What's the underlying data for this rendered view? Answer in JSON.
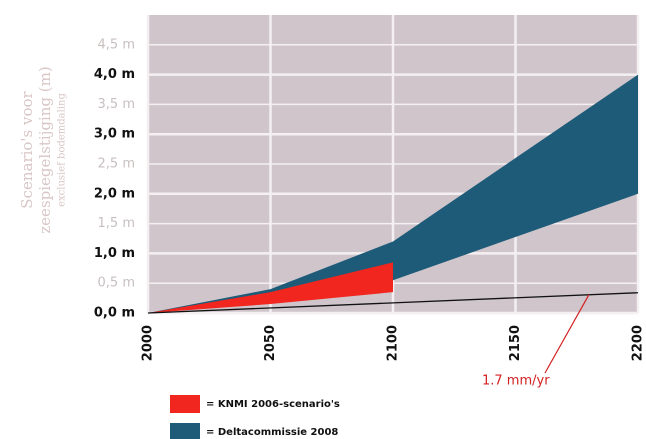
{
  "chart_data": {
    "type": "range-area",
    "ylabel": [
      "Scenario's voor",
      "zeespiegelstijging (m)"
    ],
    "ylabel_note": "exclusief bodemdaling",
    "xlim": [
      2000,
      2200
    ],
    "xticks": [
      2000,
      2050,
      2100,
      2150,
      2200
    ],
    "ylim": [
      0,
      5
    ],
    "yticks": [
      {
        "value": 0,
        "label": "0,0 m"
      },
      {
        "value": 0.5,
        "label": "0,5 m"
      },
      {
        "value": 1,
        "label": "1,0 m"
      },
      {
        "value": 1.5,
        "label": "1,5 m"
      },
      {
        "value": 2,
        "label": "2,0 m"
      },
      {
        "value": 2.5,
        "label": "2,5 m"
      },
      {
        "value": 3,
        "label": "3,0 m"
      },
      {
        "value": 3.5,
        "label": "3,5 m"
      },
      {
        "value": 4,
        "label": "4,0 m"
      },
      {
        "value": 4.5,
        "label": "4,5 m"
      }
    ],
    "grid": true,
    "series": [
      {
        "name": "= Deltacommissie 2008",
        "color": "#1d5b78",
        "x": [
          2000,
          2050,
          2100,
          2200
        ],
        "lower": [
          0,
          0.3,
          0.55,
          2.0
        ],
        "upper": [
          0,
          0.4,
          1.2,
          4.0
        ]
      },
      {
        "name": "= KNMI 2006-scenario's",
        "color": "#f0261f",
        "x": [
          2000,
          2050,
          2100
        ],
        "lower": [
          0,
          0.15,
          0.35
        ],
        "upper": [
          0,
          0.35,
          0.85
        ]
      }
    ],
    "trend": {
      "color": "#111111",
      "x": [
        2000,
        2200
      ],
      "values": [
        0,
        0.34
      ]
    },
    "annotation": {
      "text": "1.7 mm/yr",
      "color": "#d42020",
      "x": 2180,
      "y": 0.31
    }
  }
}
